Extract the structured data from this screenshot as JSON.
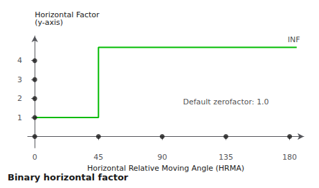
{
  "chart_data": {
    "type": "line",
    "title": "Binary horizontal factor",
    "xlabel": "Horizontal Relative Moving Angle (HRMA)",
    "ylabel": "Horizontal Factor\n(y-axis)",
    "series": [
      {
        "type": "line",
        "color": "#00bb00",
        "x": [
          0,
          45,
          45,
          185
        ],
        "values": [
          1,
          1,
          4.7,
          4.7
        ]
      },
      {
        "type": "scatter",
        "color": "#1a1a1a",
        "x": [
          0,
          0,
          0,
          0,
          0
        ],
        "values": [
          0,
          1,
          2,
          3,
          4
        ]
      },
      {
        "type": "scatter",
        "color": "#1a1a1a",
        "x": [
          45,
          90,
          135,
          180
        ],
        "values": [
          0,
          0,
          0,
          0
        ]
      }
    ],
    "annotations": [
      {
        "text": "INF",
        "x": 183,
        "y": 4.82
      },
      {
        "text": "Default zerofactor: 1.0",
        "x": 135,
        "y": 1.55
      }
    ],
    "xlim": [
      -5,
      190
    ],
    "ylim": [
      -0.6,
      5.3
    ],
    "xticks": [
      0,
      45,
      90,
      135,
      180
    ],
    "yticks": [
      1,
      2,
      3,
      4
    ],
    "grid": false
  }
}
